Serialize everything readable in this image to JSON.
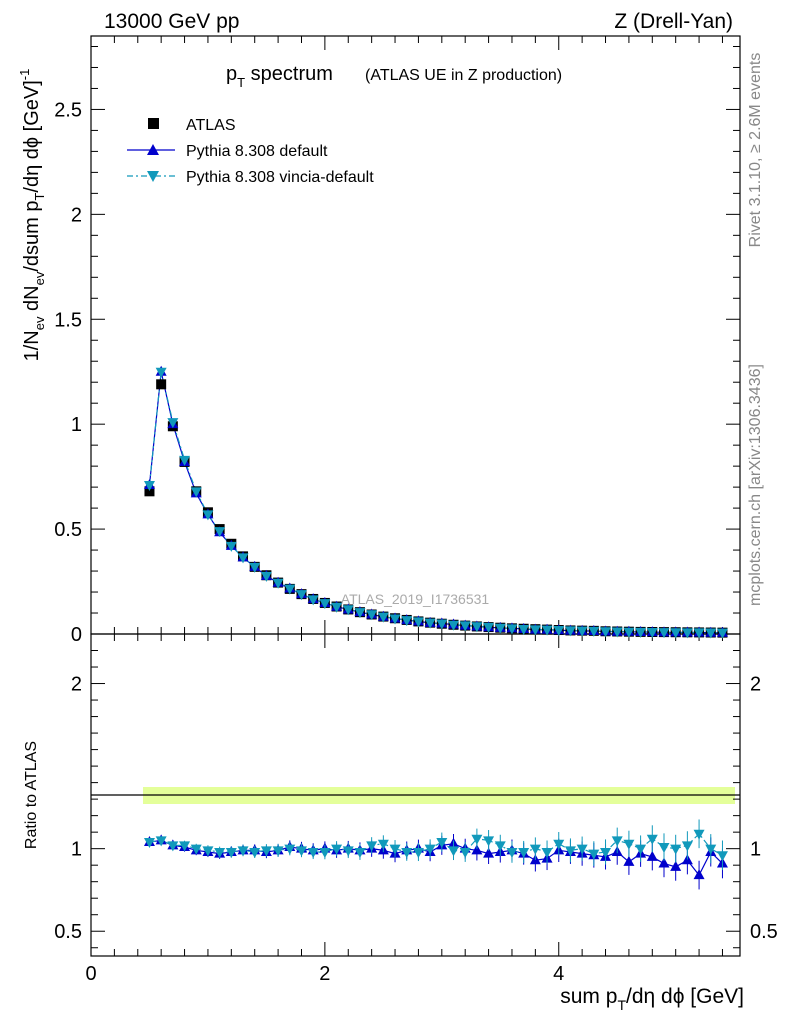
{
  "header": {
    "left": "13000 GeV pp",
    "right": "Z (Drell-Yan)"
  },
  "side": {
    "rivet": "Rivet 3.1.10, ≥ 2.6M events",
    "mcplots": "mcplots.cern.ch [arXiv:1306.3436]"
  },
  "watermark": "ATLAS_2019_I1736531",
  "title": {
    "main_pre": "p",
    "main_sub": "T",
    "main_post": " spectrum",
    "paren": "(ATLAS UE in Z production)"
  },
  "legend": [
    {
      "label": "ATLAS",
      "color": "#000000",
      "marker": "square"
    },
    {
      "label": "Pythia 8.308 default",
      "color": "#0000cc",
      "marker": "triangle-up"
    },
    {
      "label": "Pythia 8.308 vincia-default",
      "color": "#1199bb",
      "marker": "triangle-down"
    }
  ],
  "axes": {
    "ylabel_main": "1/N_ev dN_ev/dsum p_T/dη dϕ [GeV]^-1",
    "ylabel_ratio": "Ratio to ATLAS",
    "xlabel": "sum p_T/dη dϕ [GeV]",
    "main_yticks": [
      "0",
      "0.5",
      "1",
      "1.5",
      "2",
      "2.5"
    ],
    "ratio_yticks": [
      "0.5",
      "1",
      "2"
    ],
    "xticks": [
      "0",
      "2",
      "4"
    ]
  },
  "chart_data": [
    {
      "type": "scatter",
      "panel": "main",
      "xlim": [
        0,
        5.55
      ],
      "ylim": [
        0,
        2.85
      ],
      "x": [
        0.5,
        0.6,
        0.7,
        0.8,
        0.9,
        1.0,
        1.1,
        1.2,
        1.3,
        1.4,
        1.5,
        1.6,
        1.7,
        1.8,
        1.9,
        2.0,
        2.1,
        2.2,
        2.3,
        2.4,
        2.5,
        2.6,
        2.7,
        2.8,
        2.9,
        3.0,
        3.1,
        3.2,
        3.3,
        3.4,
        3.5,
        3.6,
        3.7,
        3.8,
        3.9,
        4.0,
        4.1,
        4.2,
        4.3,
        4.4,
        4.5,
        4.6,
        4.7,
        4.8,
        4.9,
        5.0,
        5.1,
        5.2,
        5.3,
        5.4
      ],
      "series": [
        {
          "name": "ATLAS",
          "values": [
            0.68,
            1.19,
            0.99,
            0.82,
            0.68,
            0.58,
            0.5,
            0.43,
            0.37,
            0.32,
            0.28,
            0.245,
            0.215,
            0.19,
            0.167,
            0.148,
            0.131,
            0.117,
            0.104,
            0.093,
            0.083,
            0.075,
            0.067,
            0.06,
            0.054,
            0.049,
            0.044,
            0.04,
            0.036,
            0.033,
            0.03,
            0.027,
            0.025,
            0.023,
            0.021,
            0.019,
            0.017,
            0.016,
            0.015,
            0.013,
            0.012,
            0.011,
            0.01,
            0.0095,
            0.009,
            0.0085,
            0.008,
            0.0075,
            0.007,
            0.0065
          ]
        },
        {
          "name": "Pythia 8.308 default",
          "values": [
            0.71,
            1.25,
            1.0,
            0.82,
            0.67,
            0.57,
            0.485,
            0.42,
            0.365,
            0.32,
            0.277,
            0.244,
            0.217,
            0.19,
            0.166,
            0.148,
            0.13,
            0.117,
            0.104,
            0.093,
            0.082,
            0.074,
            0.066,
            0.06,
            0.053,
            0.05,
            0.045,
            0.04,
            0.036,
            0.032,
            0.029,
            0.027,
            0.024,
            0.021,
            0.02,
            0.018,
            0.016,
            0.015,
            0.014,
            0.012,
            0.011,
            0.0105,
            0.0095,
            0.009,
            0.008,
            0.0075,
            0.007,
            0.007,
            0.006,
            0.006
          ]
        },
        {
          "name": "Pythia 8.308 vincia-default",
          "values": [
            0.71,
            1.25,
            1.01,
            0.83,
            0.68,
            0.57,
            0.49,
            0.42,
            0.365,
            0.32,
            0.277,
            0.244,
            0.216,
            0.19,
            0.165,
            0.147,
            0.13,
            0.118,
            0.104,
            0.094,
            0.083,
            0.074,
            0.066,
            0.06,
            0.054,
            0.05,
            0.044,
            0.041,
            0.037,
            0.034,
            0.03,
            0.027,
            0.024,
            0.022,
            0.021,
            0.019,
            0.017,
            0.016,
            0.015,
            0.013,
            0.012,
            0.011,
            0.01,
            0.0095,
            0.009,
            0.0085,
            0.008,
            0.0075,
            0.007,
            0.0065
          ]
        }
      ]
    },
    {
      "type": "scatter",
      "panel": "ratio",
      "xlim": [
        0,
        5.55
      ],
      "ylim": [
        0.35,
        2.3
      ],
      "ylabel": "Ratio to ATLAS",
      "x": [
        0.5,
        0.6,
        0.7,
        0.8,
        0.9,
        1.0,
        1.1,
        1.2,
        1.3,
        1.4,
        1.5,
        1.6,
        1.7,
        1.8,
        1.9,
        2.0,
        2.1,
        2.2,
        2.3,
        2.4,
        2.5,
        2.6,
        2.7,
        2.8,
        2.9,
        3.0,
        3.1,
        3.2,
        3.3,
        3.4,
        3.5,
        3.6,
        3.7,
        3.8,
        3.9,
        4.0,
        4.1,
        4.2,
        4.3,
        4.4,
        4.5,
        4.6,
        4.7,
        4.8,
        4.9,
        5.0,
        5.1,
        5.2,
        5.3,
        5.4
      ],
      "series": [
        {
          "name": "Pythia 8.308 default",
          "values": [
            1.04,
            1.05,
            1.02,
            1.01,
            0.99,
            0.98,
            0.97,
            0.98,
            0.99,
            0.99,
            0.98,
            0.99,
            1.01,
            1.0,
            0.99,
            1.0,
            0.99,
            1.0,
            0.99,
            1.0,
            0.99,
            0.97,
            0.99,
            1.0,
            0.98,
            1.02,
            1.03,
            1.0,
            0.99,
            0.97,
            0.98,
            0.99,
            0.97,
            0.93,
            0.94,
            0.99,
            0.98,
            0.97,
            0.96,
            0.95,
            0.98,
            0.92,
            0.97,
            0.95,
            0.91,
            0.89,
            0.93,
            0.84,
            0.98,
            0.91
          ]
        },
        {
          "name": "Pythia 8.308 vincia-default",
          "values": [
            1.04,
            1.05,
            1.02,
            1.02,
            1.0,
            0.99,
            0.98,
            0.98,
            0.99,
            0.98,
            0.99,
            0.99,
            1.0,
            0.99,
            0.98,
            0.98,
            1.0,
            0.99,
            0.98,
            1.02,
            1.03,
            1.0,
            0.98,
            0.98,
            1.0,
            1.04,
            0.99,
            0.98,
            1.06,
            1.05,
            1.02,
            0.98,
            0.98,
            1.0,
            0.98,
            1.03,
            0.99,
            1.0,
            0.97,
            0.98,
            1.05,
            1.03,
            1.0,
            1.06,
            1.01,
            1.0,
            1.02,
            1.09,
            1.0,
            0.96
          ]
        }
      ]
    }
  ]
}
